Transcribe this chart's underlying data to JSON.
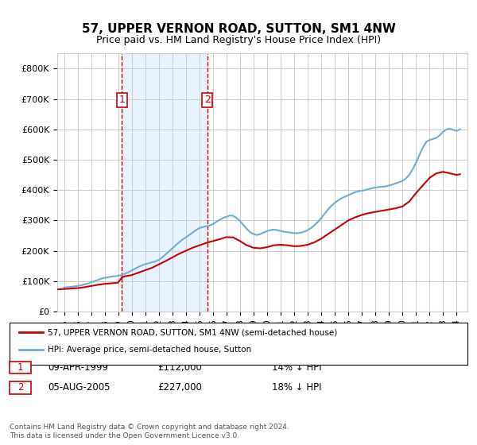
{
  "title": "57, UPPER VERNON ROAD, SUTTON, SM1 4NW",
  "subtitle": "Price paid vs. HM Land Registry's House Price Index (HPI)",
  "legend_line1": "57, UPPER VERNON ROAD, SUTTON, SM1 4NW (semi-detached house)",
  "legend_line2": "HPI: Average price, semi-detached house, Sutton",
  "footer": "Contains HM Land Registry data © Crown copyright and database right 2024.\nThis data is licensed under the Open Government Licence v3.0.",
  "purchase1_date": "09-APR-1999",
  "purchase1_price": 112000,
  "purchase1_pct": "14% ↓ HPI",
  "purchase2_date": "05-AUG-2005",
  "purchase2_price": 227000,
  "purchase2_pct": "18% ↓ HPI",
  "purchase1_year": 1999.27,
  "purchase2_year": 2005.59,
  "hpi_color": "#6baed6",
  "price_color": "#cc0000",
  "vline_color": "#cc0000",
  "shade_color": "#ddeeff",
  "background_color": "#ffffff",
  "grid_color": "#cccccc",
  "ylim": [
    0,
    850000
  ],
  "xlim_left": 1994.5,
  "xlim_right": 2024.8,
  "hpi_years": [
    1995,
    1995.25,
    1995.5,
    1995.75,
    1996,
    1996.25,
    1996.5,
    1996.75,
    1997,
    1997.25,
    1997.5,
    1997.75,
    1998,
    1998.25,
    1998.5,
    1998.75,
    1999,
    1999.25,
    1999.5,
    1999.75,
    2000,
    2000.25,
    2000.5,
    2000.75,
    2001,
    2001.25,
    2001.5,
    2001.75,
    2002,
    2002.25,
    2002.5,
    2002.75,
    2003,
    2003.25,
    2003.5,
    2003.75,
    2004,
    2004.25,
    2004.5,
    2004.75,
    2005,
    2005.25,
    2005.5,
    2005.75,
    2006,
    2006.25,
    2006.5,
    2006.75,
    2007,
    2007.25,
    2007.5,
    2007.75,
    2008,
    2008.25,
    2008.5,
    2008.75,
    2009,
    2009.25,
    2009.5,
    2009.75,
    2010,
    2010.25,
    2010.5,
    2010.75,
    2011,
    2011.25,
    2011.5,
    2011.75,
    2012,
    2012.25,
    2012.5,
    2012.75,
    2013,
    2013.25,
    2013.5,
    2013.75,
    2014,
    2014.25,
    2014.5,
    2014.75,
    2015,
    2015.25,
    2015.5,
    2015.75,
    2016,
    2016.25,
    2016.5,
    2016.75,
    2017,
    2017.25,
    2017.5,
    2017.75,
    2018,
    2018.25,
    2018.5,
    2018.75,
    2019,
    2019.25,
    2019.5,
    2019.75,
    2020,
    2020.25,
    2020.5,
    2020.75,
    2021,
    2021.25,
    2021.5,
    2021.75,
    2022,
    2022.25,
    2022.5,
    2022.75,
    2023,
    2023.25,
    2023.5,
    2023.75,
    2024,
    2024.25
  ],
  "hpi_values": [
    79000,
    80000,
    81000,
    82500,
    84000,
    86000,
    89000,
    92000,
    96000,
    100000,
    104000,
    108000,
    111000,
    113000,
    115000,
    116000,
    118000,
    120000,
    124000,
    129000,
    135000,
    141000,
    147000,
    152000,
    156000,
    159000,
    162000,
    165000,
    170000,
    178000,
    188000,
    198000,
    208000,
    218000,
    228000,
    237000,
    244000,
    252000,
    260000,
    268000,
    275000,
    278000,
    281000,
    283000,
    288000,
    295000,
    302000,
    308000,
    312000,
    316000,
    315000,
    308000,
    298000,
    285000,
    272000,
    261000,
    255000,
    252000,
    255000,
    260000,
    265000,
    268000,
    270000,
    268000,
    265000,
    263000,
    261000,
    260000,
    258000,
    258000,
    260000,
    263000,
    268000,
    275000,
    284000,
    295000,
    308000,
    322000,
    336000,
    348000,
    358000,
    366000,
    373000,
    378000,
    383000,
    388000,
    393000,
    396000,
    398000,
    400000,
    403000,
    406000,
    408000,
    410000,
    411000,
    412000,
    415000,
    418000,
    422000,
    426000,
    430000,
    438000,
    450000,
    468000,
    490000,
    515000,
    540000,
    558000,
    565000,
    568000,
    572000,
    580000,
    592000,
    600000,
    602000,
    598000,
    595000,
    600000
  ],
  "price_years": [
    1994.5,
    1995,
    1995.5,
    1996,
    1996.5,
    1997,
    1997.5,
    1998,
    1998.5,
    1999.0,
    1999.27,
    1999.5,
    2000,
    2000.5,
    2001,
    2001.5,
    2002,
    2002.5,
    2003,
    2003.5,
    2004,
    2004.5,
    2005.0,
    2005.59,
    2006,
    2006.5,
    2007,
    2007.5,
    2008,
    2008.5,
    2009,
    2009.5,
    2010,
    2010.5,
    2011,
    2011.5,
    2012,
    2012.5,
    2013,
    2013.5,
    2014,
    2014.5,
    2015,
    2015.5,
    2016,
    2016.5,
    2017,
    2017.5,
    2018,
    2018.5,
    2019,
    2019.5,
    2020,
    2020.5,
    2021,
    2021.5,
    2022,
    2022.5,
    2023,
    2023.5,
    2024,
    2024.25
  ],
  "price_values": [
    73000,
    74000,
    75500,
    77000,
    80000,
    84000,
    88000,
    91000,
    93000,
    95000,
    112000,
    116000,
    120000,
    128000,
    136000,
    144000,
    155000,
    166000,
    178000,
    190000,
    200000,
    210000,
    218000,
    227000,
    232000,
    238000,
    245000,
    244000,
    232000,
    218000,
    210000,
    208000,
    212000,
    218000,
    220000,
    218000,
    215000,
    216000,
    220000,
    228000,
    240000,
    255000,
    270000,
    285000,
    300000,
    310000,
    318000,
    324000,
    328000,
    332000,
    336000,
    340000,
    346000,
    362000,
    390000,
    415000,
    440000,
    455000,
    460000,
    455000,
    450000,
    452000
  ]
}
